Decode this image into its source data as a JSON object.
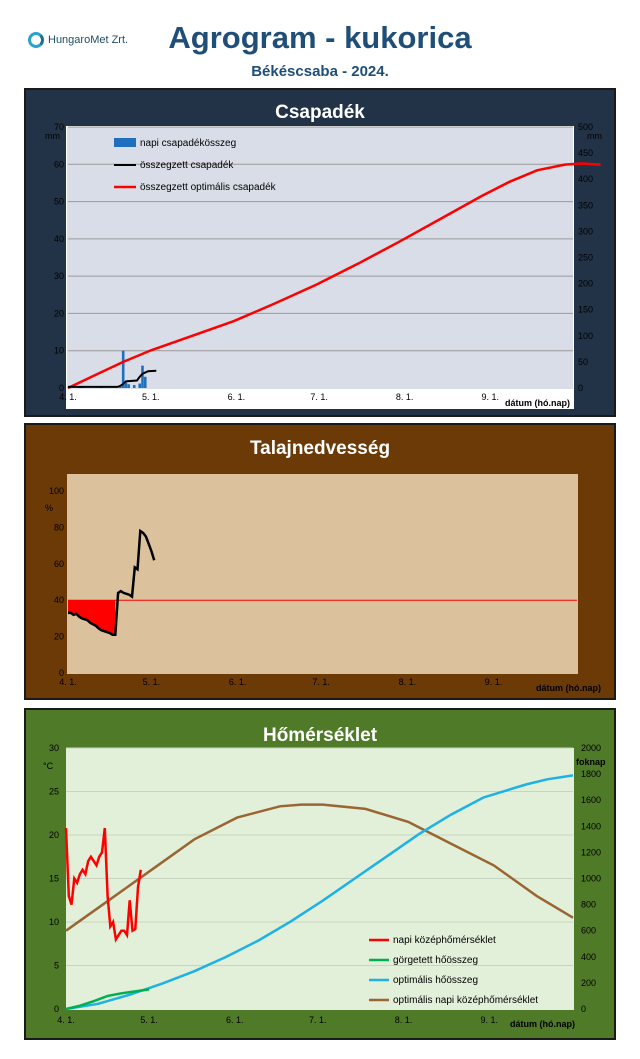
{
  "header": {
    "logo_text": "HungaroMet Zrt.",
    "title": "Agrogram - kukorica",
    "subtitle": "Békéscsaba  - 2024."
  },
  "chart_data": [
    {
      "type": "bar",
      "title": "Csapadék",
      "xlabel": "dátum (hó.nap)",
      "ylabel_left": "mm",
      "ylabel_right": "mm",
      "x_ticks": [
        "4. 1.",
        "5. 1.",
        "6. 1.",
        "7. 1.",
        "8. 1.",
        "9. 1."
      ],
      "ylim_left": [
        0,
        70
      ],
      "y_ticks_left": [
        0,
        10,
        20,
        30,
        40,
        50,
        60,
        70
      ],
      "ylim_right": [
        0,
        500
      ],
      "y_ticks_right": [
        0,
        50,
        100,
        150,
        200,
        250,
        300,
        350,
        400,
        450,
        500
      ],
      "legend": [
        "napi csapadékösszeg",
        "összegzett csapadék",
        "összegzett optimális csapadék"
      ],
      "colors": {
        "bars": "#1f6fbf",
        "cumulative": "#000000",
        "optimal": "#ff0000",
        "background": "#d9dde8",
        "frame": "#223347"
      },
      "daily_precip": [
        [
          4,
          0.5
        ],
        [
          5,
          0.2
        ],
        [
          12,
          0.3
        ],
        [
          19,
          0.4
        ],
        [
          20,
          10.0
        ],
        [
          21,
          1.5
        ],
        [
          22,
          1.0
        ],
        [
          24,
          0.8
        ],
        [
          26,
          1.2
        ],
        [
          27,
          6.0
        ],
        [
          28,
          3.0
        ]
      ],
      "cumulative": [
        [
          0,
          0.3
        ],
        [
          18,
          0.3
        ],
        [
          19,
          0.6
        ],
        [
          20,
          1.1
        ],
        [
          21,
          1.8
        ],
        [
          25,
          2.0
        ],
        [
          26,
          3.0
        ],
        [
          27,
          3.8
        ],
        [
          29,
          4.5
        ],
        [
          32,
          4.6
        ]
      ],
      "optimal_cumulative": [
        [
          0,
          0
        ],
        [
          10,
          25
        ],
        [
          20,
          50
        ],
        [
          30,
          72
        ],
        [
          45,
          100
        ],
        [
          60,
          128
        ],
        [
          75,
          162
        ],
        [
          90,
          198
        ],
        [
          105,
          238
        ],
        [
          120,
          280
        ],
        [
          135,
          324
        ],
        [
          150,
          368
        ],
        [
          160,
          395
        ],
        [
          170,
          417
        ],
        [
          180,
          428
        ],
        [
          186,
          430
        ],
        [
          193,
          428
        ]
      ]
    },
    {
      "type": "line",
      "title": "Talajnedvesség",
      "xlabel": "dátum (hó.nap)",
      "ylabel": "%",
      "x_ticks": [
        "4. 1.",
        "5. 1.",
        "6. 1.",
        "7. 1.",
        "8. 1.",
        "9. 1."
      ],
      "ylim": [
        0,
        100
      ],
      "y_ticks": [
        0,
        20,
        40,
        60,
        80,
        100
      ],
      "threshold": 40,
      "colors": {
        "line": "#000000",
        "deficit": "#ff0000",
        "threshold": "#ff0000",
        "background": "#dbc29d",
        "frame": "#6b3a07"
      },
      "soil_moisture": [
        [
          0,
          33
        ],
        [
          1,
          33
        ],
        [
          2,
          32
        ],
        [
          3,
          32.5
        ],
        [
          4,
          31
        ],
        [
          5,
          30
        ],
        [
          7,
          29
        ],
        [
          8,
          27.5
        ],
        [
          10,
          26
        ],
        [
          11,
          24.5
        ],
        [
          12,
          23.5
        ],
        [
          14,
          22.5
        ],
        [
          15,
          22
        ],
        [
          16,
          21
        ],
        [
          17,
          21
        ],
        [
          18,
          44
        ],
        [
          19,
          45
        ],
        [
          20,
          44
        ],
        [
          21,
          43.5
        ],
        [
          22,
          43
        ],
        [
          23,
          42
        ],
        [
          24,
          58
        ],
        [
          25,
          57
        ],
        [
          26,
          78
        ],
        [
          27,
          77
        ],
        [
          28,
          75
        ],
        [
          29,
          71
        ],
        [
          30,
          67
        ],
        [
          31,
          62
        ]
      ]
    },
    {
      "type": "line",
      "title": "Hőmérséklet",
      "xlabel": "dátum (hó.nap)",
      "ylabel_left": "°C",
      "ylabel_right": "foknap",
      "x_ticks": [
        "4. 1.",
        "5. 1.",
        "6. 1.",
        "7. 1.",
        "8. 1.",
        "9. 1."
      ],
      "ylim_left": [
        0,
        30
      ],
      "y_ticks_left": [
        0,
        5,
        10,
        15,
        20,
        25,
        30
      ],
      "ylim_right": [
        0,
        2000
      ],
      "y_ticks_right": [
        0,
        200,
        400,
        600,
        800,
        1000,
        1200,
        1400,
        1600,
        1800,
        2000
      ],
      "legend": [
        "napi középhőmérséklet",
        "görgetett hőösszeg",
        "optimális hőösszeg",
        "optimális napi középhőmérséklet"
      ],
      "colors": {
        "daily": "#ff0000",
        "rolling_sum": "#00b050",
        "optimal_sum": "#1eb1e8",
        "optimal_daily": "#996633",
        "background": "#e2efd9",
        "frame": "#4f7a28"
      },
      "daily_mean_temp": [
        [
          0,
          20.8
        ],
        [
          1,
          13
        ],
        [
          2,
          12
        ],
        [
          3,
          15
        ],
        [
          4,
          14.5
        ],
        [
          5,
          15.5
        ],
        [
          6,
          16
        ],
        [
          7,
          15.5
        ],
        [
          8,
          17
        ],
        [
          9,
          17.5
        ],
        [
          10,
          17
        ],
        [
          11,
          16.5
        ],
        [
          12,
          17.5
        ],
        [
          13,
          18
        ],
        [
          14,
          20.8
        ],
        [
          15,
          13
        ],
        [
          16,
          9.5
        ],
        [
          17,
          10
        ],
        [
          18,
          8
        ],
        [
          19,
          8.5
        ],
        [
          20,
          9
        ],
        [
          21,
          9
        ],
        [
          22,
          8.5
        ],
        [
          23,
          12.5
        ],
        [
          24,
          9
        ],
        [
          25,
          9.2
        ],
        [
          26,
          14
        ],
        [
          27,
          16
        ]
      ],
      "rolling_heat_sum": [
        [
          0,
          0
        ],
        [
          5,
          25
        ],
        [
          10,
          60
        ],
        [
          15,
          100
        ],
        [
          20,
          120
        ],
        [
          25,
          135
        ],
        [
          30,
          150
        ]
      ],
      "optimal_heat_sum": [
        [
          0,
          0
        ],
        [
          15,
          40
        ],
        [
          30,
          110
        ],
        [
          45,
          195
        ],
        [
          60,
          290
        ],
        [
          75,
          400
        ],
        [
          90,
          525
        ],
        [
          105,
          670
        ],
        [
          120,
          830
        ],
        [
          135,
          1000
        ],
        [
          150,
          1170
        ],
        [
          165,
          1340
        ],
        [
          180,
          1490
        ],
        [
          195,
          1620
        ],
        [
          215,
          1720
        ],
        [
          225,
          1760
        ],
        [
          237,
          1790
        ]
      ],
      "optimal_daily_temp": [
        [
          0,
          9
        ],
        [
          20,
          12.5
        ],
        [
          40,
          16
        ],
        [
          60,
          19.5
        ],
        [
          80,
          22
        ],
        [
          100,
          23.3
        ],
        [
          110,
          23.5
        ],
        [
          120,
          23.5
        ],
        [
          140,
          23
        ],
        [
          160,
          21.5
        ],
        [
          180,
          19
        ],
        [
          200,
          16.5
        ],
        [
          220,
          13
        ],
        [
          237,
          10.5
        ]
      ]
    }
  ]
}
